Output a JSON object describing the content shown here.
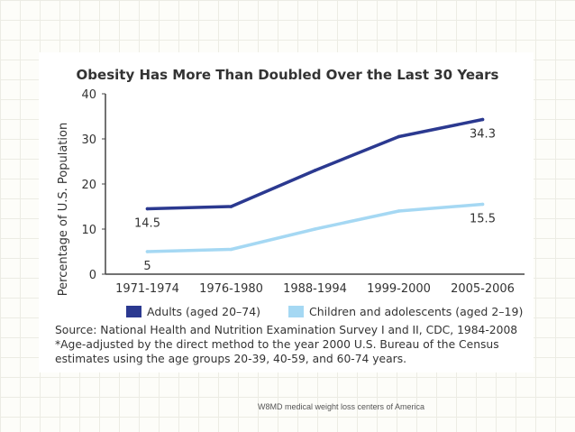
{
  "chart_data": {
    "type": "line",
    "title": "Obesity Has More Than Doubled Over the Last 30 Years",
    "xlabel": "",
    "ylabel": "Percentage of U.S. Population",
    "categories": [
      "1971-1974",
      "1976-1980",
      "1988-1994",
      "1999-2000",
      "2005-2006"
    ],
    "ylim": [
      0,
      40
    ],
    "yticks": [
      0,
      10,
      20,
      30,
      40
    ],
    "series": [
      {
        "name": "Adults (aged 20–74)",
        "color": "#2b3990",
        "values": [
          14.5,
          15,
          23,
          30.5,
          34.3
        ],
        "labels": [
          {
            "index": 0,
            "text": "14.5"
          },
          {
            "index": 4,
            "text": "34.3"
          }
        ]
      },
      {
        "name": "Children and adolescents (aged 2–19)",
        "color": "#a5d8f3",
        "values": [
          5,
          5.5,
          10,
          14,
          15.5
        ],
        "labels": [
          {
            "index": 0,
            "text": "5"
          },
          {
            "index": 4,
            "text": "15.5"
          }
        ]
      }
    ]
  },
  "notes": {
    "source": "Source: National Health and Nutrition Examination Survey I and II, CDC, 1984-2008",
    "footnote_line1": "*Age-adjusted by the direct method to the year 2000 U.S. Bureau of the Census",
    "footnote_line2": "estimates using the age groups 20-39, 40-59, and 60-74 years."
  },
  "footer": {
    "text": "W8MD medical weight loss centers of America"
  }
}
